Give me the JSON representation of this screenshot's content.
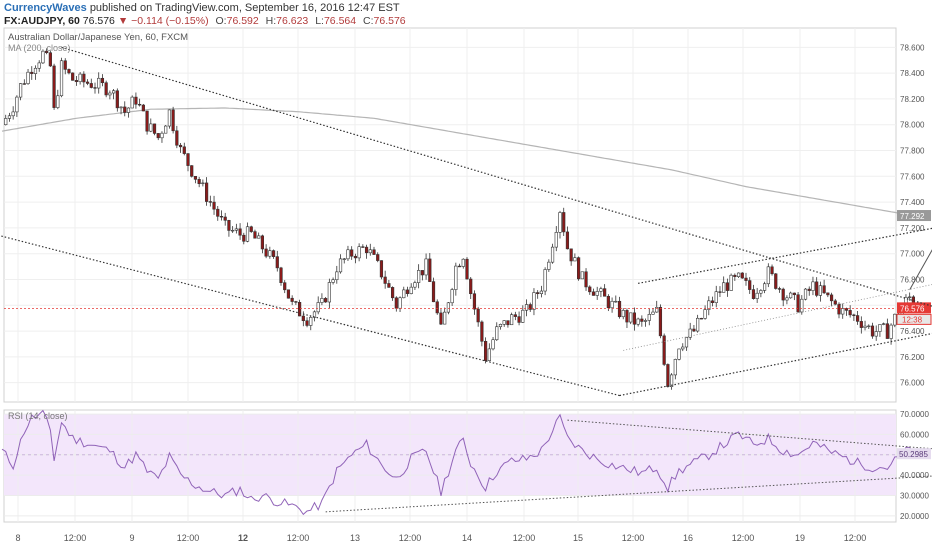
{
  "header": {
    "brand": "CurrencyWaves",
    "published_text": "published on TradingView.com, September 16, 2016 12:47 EST",
    "symbol": "FX:AUDJPY, 60",
    "last": "76.576",
    "change": "▼ −0.114 (−0.15%)",
    "o_label": "O:",
    "o": "76.592",
    "h_label": "H:",
    "h": "76.623",
    "l_label": "L:",
    "l": "76.564",
    "c_label": "C:",
    "c": "76.576"
  },
  "colors": {
    "bull": "#ffffff",
    "bear": "#8b1a1a",
    "candle_outline": "#333333",
    "ma": "#b5b5b5",
    "rsi_line": "#9063b8",
    "rsi_band": "#f3e6fb",
    "price_line": "#e53935",
    "trend": "#333333"
  },
  "chart_data": [
    {
      "type": "candlestick",
      "title": "Australian Dollar/Japanese Yen, 60, FXCM",
      "indicator_label": "MA (200, close)",
      "ylim": [
        75.85,
        78.75
      ],
      "y_ticks": [
        "78.600",
        "78.400",
        "78.200",
        "78.000",
        "77.800",
        "77.600",
        "77.400",
        "77.200",
        "77.000",
        "76.800",
        "76.600",
        "76.400",
        "76.200",
        "76.000"
      ],
      "x_tick_labels": [
        "8",
        "12:00",
        "9",
        "12:00",
        "12",
        "12:00",
        "13",
        "12:00",
        "14",
        "12:00",
        "15",
        "12:00",
        "16",
        "12:00",
        "19",
        "12:00"
      ],
      "x_tick_bold": [
        false,
        false,
        false,
        false,
        true,
        false,
        false,
        false,
        false,
        false,
        false,
        false,
        false,
        false,
        false,
        false
      ],
      "price_anchors": [
        [
          0,
          78.0
        ],
        [
          3,
          78.15
        ],
        [
          5,
          78.3
        ],
        [
          8,
          78.45
        ],
        [
          11,
          78.55
        ],
        [
          13,
          78.45
        ],
        [
          14,
          78.1
        ],
        [
          16,
          78.45
        ],
        [
          19,
          78.35
        ],
        [
          24,
          78.32
        ],
        [
          29,
          78.28
        ],
        [
          33,
          78.1
        ],
        [
          36,
          78.2
        ],
        [
          39,
          78.0
        ],
        [
          42,
          77.9
        ],
        [
          45,
          78.1
        ],
        [
          48,
          77.8
        ],
        [
          52,
          77.6
        ],
        [
          56,
          77.4
        ],
        [
          60,
          77.2
        ],
        [
          64,
          77.15
        ],
        [
          67,
          77.15
        ],
        [
          70,
          77.05
        ],
        [
          74,
          76.9
        ],
        [
          78,
          76.6
        ],
        [
          82,
          76.5
        ],
        [
          86,
          76.6
        ],
        [
          90,
          76.9
        ],
        [
          94,
          77.0
        ],
        [
          98,
          77.05
        ],
        [
          102,
          76.85
        ],
        [
          106,
          76.6
        ],
        [
          110,
          76.8
        ],
        [
          114,
          76.9
        ],
        [
          118,
          76.4
        ],
        [
          122,
          76.9
        ],
        [
          124,
          77.0
        ],
        [
          126,
          76.7
        ],
        [
          130,
          76.2
        ],
        [
          133,
          76.4
        ],
        [
          137,
          76.5
        ],
        [
          141,
          76.55
        ],
        [
          145,
          76.75
        ],
        [
          148,
          77.1
        ],
        [
          150,
          77.35
        ],
        [
          152,
          77.05
        ],
        [
          156,
          76.8
        ],
        [
          160,
          76.7
        ],
        [
          164,
          76.6
        ],
        [
          168,
          76.5
        ],
        [
          172,
          76.45
        ],
        [
          176,
          76.55
        ],
        [
          179,
          76.0
        ],
        [
          182,
          76.3
        ],
        [
          186,
          76.4
        ],
        [
          190,
          76.6
        ],
        [
          194,
          76.75
        ],
        [
          198,
          76.8
        ],
        [
          202,
          76.7
        ],
        [
          206,
          76.85
        ],
        [
          210,
          76.7
        ],
        [
          214,
          76.6
        ],
        [
          218,
          76.75
        ],
        [
          222,
          76.65
        ],
        [
          226,
          76.55
        ],
        [
          230,
          76.5
        ],
        [
          234,
          76.4
        ],
        [
          238,
          76.4
        ],
        [
          242,
          76.6
        ],
        [
          244,
          76.66
        ],
        [
          246,
          76.576
        ]
      ],
      "ma200": [
        [
          0,
          77.95
        ],
        [
          20,
          78.05
        ],
        [
          40,
          78.12
        ],
        [
          60,
          78.13
        ],
        [
          80,
          78.1
        ],
        [
          100,
          78.05
        ],
        [
          120,
          77.95
        ],
        [
          140,
          77.85
        ],
        [
          160,
          77.75
        ],
        [
          180,
          77.65
        ],
        [
          200,
          77.52
        ],
        [
          220,
          77.42
        ],
        [
          246,
          77.29
        ]
      ],
      "ma_value": "77.292",
      "last_price": "76.576",
      "countdown": "12:38",
      "trendlines": [
        {
          "style": "dotted",
          "from": [
            16,
            78.6
          ],
          "to": [
            290,
            76.25
          ]
        },
        {
          "style": "dotted",
          "from": [
            -2,
            77.15
          ],
          "to": [
            166,
            75.9
          ]
        },
        {
          "style": "dotted",
          "from": [
            166,
            75.9
          ],
          "to": [
            297,
            76.65
          ]
        },
        {
          "style": "dotted",
          "from": [
            171,
            76.77
          ],
          "to": [
            297,
            77.45
          ]
        },
        {
          "style": "dotted-light",
          "from": [
            167,
            76.25
          ],
          "to": [
            297,
            77.05
          ]
        }
      ],
      "arrow": {
        "from": [
          244,
          76.72
        ],
        "to": [
          253,
          77.18
        ]
      }
    },
    {
      "type": "line",
      "title": "RSI (14, close)",
      "ylim": [
        17,
        72
      ],
      "y_ticks": [
        "70.0000",
        "60.0000",
        "50.0000",
        "40.0000",
        "30.0000",
        "20.0000"
      ],
      "band": [
        30,
        70
      ],
      "midline": 50,
      "rsi_anchors": [
        [
          0,
          52
        ],
        [
          3,
          45
        ],
        [
          6,
          62
        ],
        [
          8,
          68
        ],
        [
          11,
          70
        ],
        [
          13,
          62
        ],
        [
          14,
          48
        ],
        [
          16,
          66
        ],
        [
          19,
          58
        ],
        [
          24,
          55
        ],
        [
          29,
          52
        ],
        [
          33,
          44
        ],
        [
          36,
          50
        ],
        [
          39,
          42
        ],
        [
          42,
          38
        ],
        [
          45,
          49
        ],
        [
          48,
          40
        ],
        [
          52,
          35
        ],
        [
          56,
          32
        ],
        [
          60,
          30
        ],
        [
          64,
          33
        ],
        [
          67,
          28
        ],
        [
          70,
          30
        ],
        [
          74,
          27
        ],
        [
          78,
          25
        ],
        [
          82,
          22
        ],
        [
          86,
          26
        ],
        [
          90,
          42
        ],
        [
          94,
          50
        ],
        [
          98,
          55
        ],
        [
          102,
          45
        ],
        [
          106,
          38
        ],
        [
          110,
          48
        ],
        [
          114,
          52
        ],
        [
          118,
          32
        ],
        [
          122,
          52
        ],
        [
          124,
          57
        ],
        [
          126,
          46
        ],
        [
          130,
          34
        ],
        [
          133,
          42
        ],
        [
          137,
          47
        ],
        [
          141,
          48
        ],
        [
          145,
          52
        ],
        [
          148,
          62
        ],
        [
          150,
          68
        ],
        [
          152,
          58
        ],
        [
          156,
          52
        ],
        [
          160,
          48
        ],
        [
          164,
          45
        ],
        [
          168,
          43
        ],
        [
          172,
          41
        ],
        [
          176,
          44
        ],
        [
          179,
          34
        ],
        [
          182,
          42
        ],
        [
          186,
          46
        ],
        [
          190,
          50
        ],
        [
          194,
          55
        ],
        [
          198,
          60
        ],
        [
          202,
          55
        ],
        [
          206,
          58
        ],
        [
          210,
          52
        ],
        [
          214,
          50
        ],
        [
          218,
          56
        ],
        [
          222,
          52
        ],
        [
          226,
          49
        ],
        [
          230,
          46
        ],
        [
          234,
          44
        ],
        [
          238,
          44
        ],
        [
          242,
          50
        ],
        [
          244,
          53
        ],
        [
          246,
          50.29
        ]
      ],
      "rsi_value": "50.2985",
      "trendlines": [
        {
          "style": "dotted",
          "from": [
            87,
            22
          ],
          "to": [
            282,
            43
          ]
        },
        {
          "style": "dotted",
          "from": [
            152,
            67
          ],
          "to": [
            292,
            47
          ]
        }
      ]
    }
  ]
}
